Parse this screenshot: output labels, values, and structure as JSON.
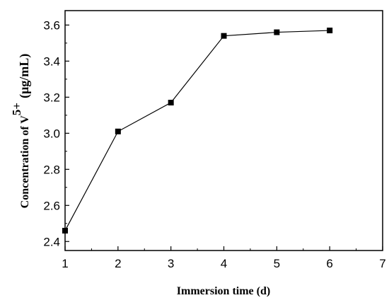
{
  "chart_data": {
    "type": "line",
    "xlabel": "Immersion time (d)",
    "ylabel": {
      "prefix": "Concentration of V",
      "superscript": "5+",
      "unit": "(μg/mL)"
    },
    "xlim": [
      1,
      7
    ],
    "ylim": [
      2.35,
      3.68
    ],
    "x_ticks": [
      "1",
      "2",
      "3",
      "4",
      "5",
      "6",
      "7"
    ],
    "y_ticks": [
      "2.4",
      "2.6",
      "2.8",
      "3.0",
      "3.2",
      "3.4",
      "3.6"
    ],
    "grid": false,
    "marker": "square",
    "series": [
      {
        "x": [
          1,
          2,
          3,
          4,
          5,
          6
        ],
        "y": [
          2.46,
          3.01,
          3.17,
          3.54,
          3.56,
          3.57
        ]
      }
    ]
  }
}
